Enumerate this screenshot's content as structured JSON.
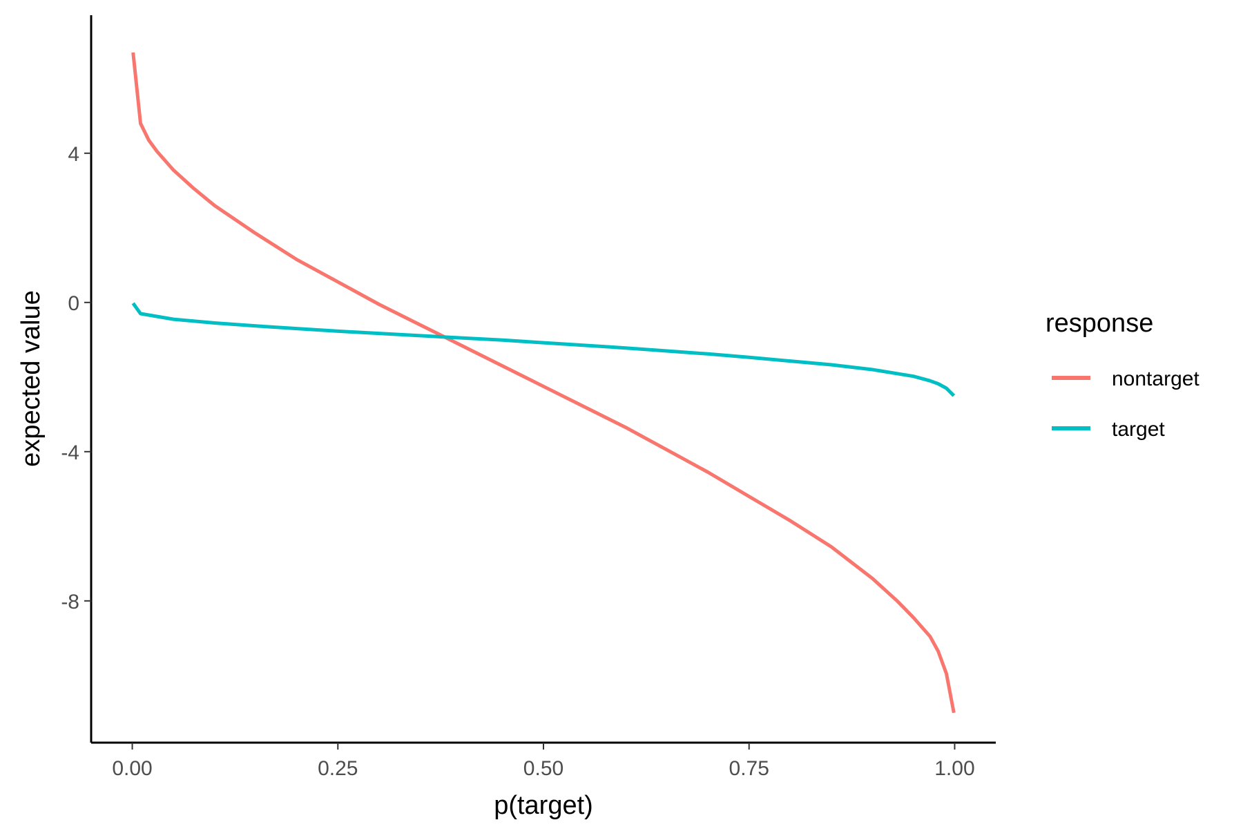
{
  "chart_data": {
    "type": "line",
    "xlabel": "p(target)",
    "ylabel": "expected value",
    "xlim": [
      -0.05,
      1.05
    ],
    "ylim": [
      -11.8,
      7.7
    ],
    "x_ticks": [
      0,
      0.25,
      0.5,
      0.75,
      1
    ],
    "x_tick_labels": [
      "0.00",
      "0.25",
      "0.50",
      "0.75",
      "1.00"
    ],
    "y_ticks": [
      4,
      0,
      -4,
      -8
    ],
    "y_tick_labels": [
      "4",
      "0",
      "-4",
      "-8"
    ],
    "grid": false,
    "legend": {
      "title": "response",
      "placement": "right"
    },
    "series": [
      {
        "name": "nontarget",
        "color": "#F8766D",
        "x": [
          0.001,
          0.01,
          0.02,
          0.03,
          0.05,
          0.075,
          0.1,
          0.15,
          0.2,
          0.25,
          0.3,
          0.35,
          0.4,
          0.45,
          0.5,
          0.55,
          0.6,
          0.65,
          0.7,
          0.75,
          0.8,
          0.85,
          0.9,
          0.93,
          0.95,
          0.97,
          0.98,
          0.99,
          0.999
        ],
        "y": [
          6.7,
          4.8,
          4.35,
          4.05,
          3.55,
          3.05,
          2.6,
          1.85,
          1.15,
          0.55,
          -0.05,
          -0.6,
          -1.15,
          -1.7,
          -2.25,
          -2.8,
          -3.35,
          -3.95,
          -4.55,
          -5.2,
          -5.85,
          -6.55,
          -7.4,
          -8.0,
          -8.45,
          -8.95,
          -9.35,
          -9.95,
          -11.0
        ]
      },
      {
        "name": "target",
        "color": "#00BFC4",
        "x": [
          0.001,
          0.01,
          0.05,
          0.1,
          0.15,
          0.2,
          0.25,
          0.3,
          0.35,
          0.4,
          0.45,
          0.5,
          0.55,
          0.6,
          0.65,
          0.7,
          0.75,
          0.8,
          0.85,
          0.9,
          0.95,
          0.97,
          0.98,
          0.99,
          0.999
        ],
        "y": [
          -0.02,
          -0.3,
          -0.45,
          -0.55,
          -0.63,
          -0.7,
          -0.77,
          -0.83,
          -0.89,
          -0.95,
          -1.01,
          -1.08,
          -1.15,
          -1.22,
          -1.3,
          -1.38,
          -1.47,
          -1.57,
          -1.67,
          -1.8,
          -1.98,
          -2.1,
          -2.18,
          -2.3,
          -2.5
        ]
      }
    ]
  }
}
